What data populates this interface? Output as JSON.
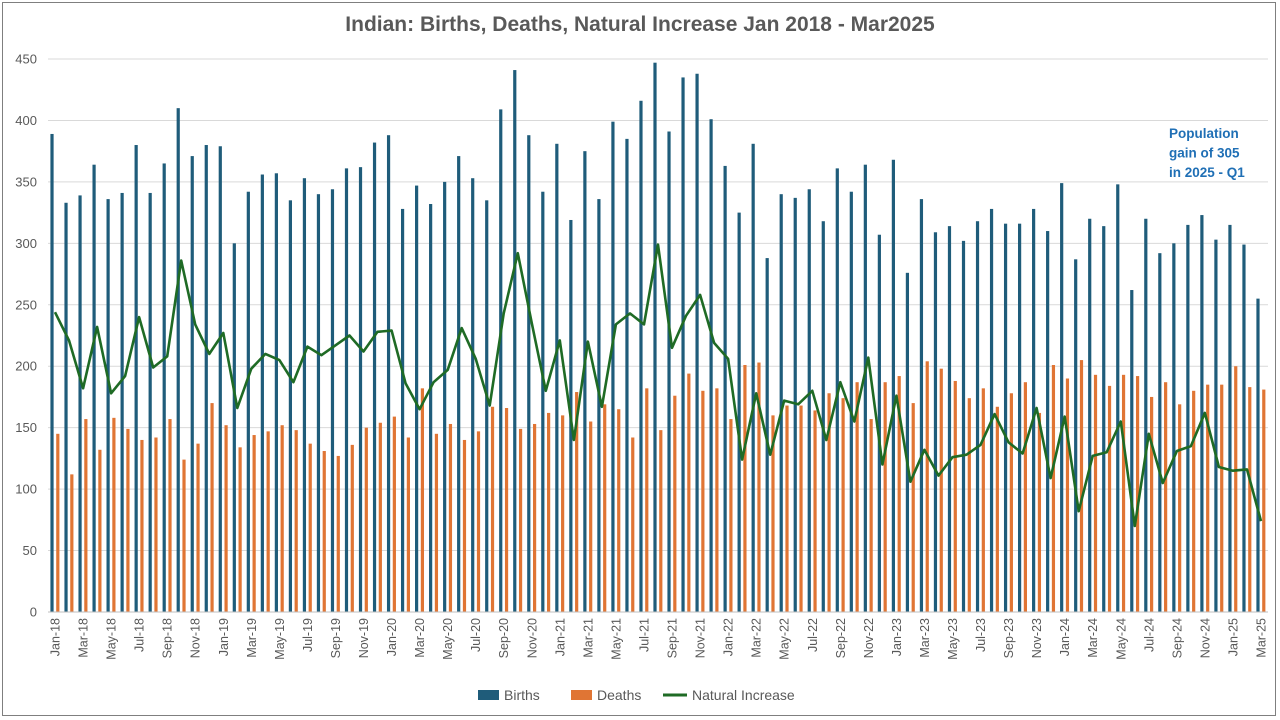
{
  "chart_data": {
    "type": "bar",
    "title": "Indian: Births, Deaths, Natural Increase Jan 2018 - Mar2025",
    "ylim": [
      0,
      450
    ],
    "yticks": [
      0,
      50,
      100,
      150,
      200,
      250,
      300,
      350,
      400,
      450
    ],
    "grid": true,
    "legend_position": "bottom",
    "categories": [
      "Jan-18",
      "Feb-18",
      "Mar-18",
      "Apr-18",
      "May-18",
      "Jun-18",
      "Jul-18",
      "Aug-18",
      "Sep-18",
      "Oct-18",
      "Nov-18",
      "Dec-18",
      "Jan-19",
      "Feb-19",
      "Mar-19",
      "Apr-19",
      "May-19",
      "Jun-19",
      "Jul-19",
      "Aug-19",
      "Sep-19",
      "Oct-19",
      "Nov-19",
      "Dec-19",
      "Jan-20",
      "Feb-20",
      "Mar-20",
      "Apr-20",
      "May-20",
      "Jun-20",
      "Jul-20",
      "Aug-20",
      "Sep-20",
      "Oct-20",
      "Nov-20",
      "Dec-20",
      "Jan-21",
      "Feb-21",
      "Mar-21",
      "Apr-21",
      "May-21",
      "Jun-21",
      "Jul-21",
      "Aug-21",
      "Sep-21",
      "Oct-21",
      "Nov-21",
      "Dec-21",
      "Jan-22",
      "Feb-22",
      "Mar-22",
      "Apr-22",
      "May-22",
      "Jun-22",
      "Jul-22",
      "Aug-22",
      "Sep-22",
      "Oct-22",
      "Nov-22",
      "Dec-22",
      "Jan-23",
      "Feb-23",
      "Mar-23",
      "Apr-23",
      "May-23",
      "Jun-23",
      "Jul-23",
      "Aug-23",
      "Sep-23",
      "Oct-23",
      "Nov-23",
      "Dec-23",
      "Jan-24",
      "Feb-24",
      "Mar-24",
      "Apr-24",
      "May-24",
      "Jun-24",
      "Jul-24",
      "Aug-24",
      "Sep-24",
      "Oct-24",
      "Nov-24",
      "Dec-24",
      "Jan-25",
      "Feb-25",
      "Mar-25"
    ],
    "series": [
      {
        "name": "Births",
        "type": "bar",
        "color": "#1f5c7a",
        "values": [
          389,
          333,
          339,
          364,
          336,
          341,
          380,
          341,
          365,
          410,
          371,
          380,
          379,
          300,
          342,
          356,
          357,
          335,
          353,
          340,
          344,
          361,
          362,
          382,
          388,
          328,
          347,
          332,
          350,
          371,
          353,
          335,
          409,
          441,
          388,
          342,
          381,
          319,
          375,
          336,
          399,
          385,
          416,
          447,
          391,
          435,
          438,
          401,
          363,
          325,
          381,
          288,
          340,
          337,
          344,
          318,
          361,
          342,
          364,
          307,
          368,
          276,
          336,
          309,
          314,
          302,
          318,
          328,
          316,
          316,
          328,
          310,
          349,
          287,
          320,
          314,
          348,
          262,
          320,
          292,
          300,
          315,
          323,
          303,
          315,
          299,
          255
        ]
      },
      {
        "name": "Deaths",
        "type": "bar",
        "color": "#e07534",
        "values": [
          145,
          112,
          157,
          132,
          158,
          149,
          140,
          142,
          157,
          124,
          137,
          170,
          152,
          134,
          144,
          147,
          152,
          148,
          137,
          131,
          127,
          136,
          150,
          154,
          159,
          142,
          182,
          145,
          153,
          140,
          147,
          167,
          166,
          149,
          153,
          162,
          160,
          179,
          155,
          169,
          165,
          142,
          182,
          148,
          176,
          194,
          180,
          182,
          157,
          201,
          203,
          160,
          168,
          168,
          164,
          178,
          174,
          187,
          157,
          187,
          192,
          170,
          204,
          198,
          188,
          174,
          182,
          167,
          178,
          187,
          162,
          201,
          190,
          205,
          193,
          184,
          193,
          192,
          175,
          187,
          169,
          180,
          185,
          185,
          200,
          183,
          181
        ]
      },
      {
        "name": "Natural Increase",
        "type": "line",
        "color": "#1f6b25",
        "values": [
          244,
          221,
          182,
          232,
          178,
          192,
          240,
          199,
          208,
          286,
          234,
          210,
          227,
          166,
          198,
          210,
          205,
          187,
          216,
          209,
          217,
          225,
          212,
          228,
          229,
          186,
          165,
          187,
          197,
          231,
          206,
          168,
          243,
          292,
          235,
          180,
          221,
          140,
          220,
          167,
          234,
          243,
          234,
          299,
          215,
          241,
          258,
          219,
          206,
          124,
          178,
          128,
          172,
          169,
          180,
          140,
          187,
          155,
          207,
          120,
          176,
          106,
          132,
          111,
          126,
          128,
          136,
          161,
          138,
          129,
          166,
          109,
          159,
          82,
          127,
          130,
          155,
          70,
          145,
          105,
          131,
          135,
          162,
          118,
          115,
          116,
          74
        ]
      }
    ],
    "annotation": "Population gain of 305 in 2025 - Q1",
    "annotation_lines": [
      "Population",
      "gain of 305",
      "in 2025 - Q1"
    ]
  }
}
